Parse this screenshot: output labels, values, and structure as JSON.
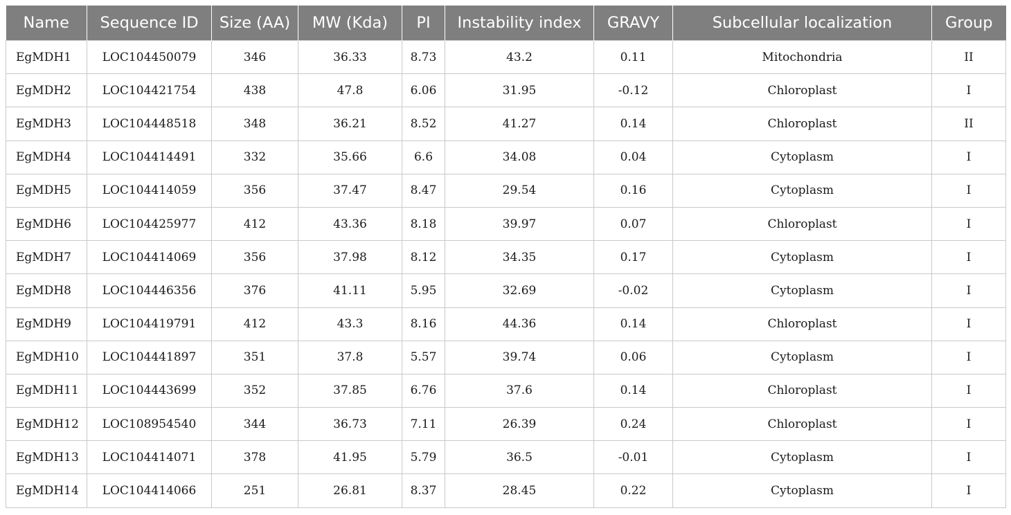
{
  "table": {
    "headers": [
      "Name",
      "Sequence ID",
      "Size (AA)",
      "MW (Kda)",
      "PI",
      "Instability index",
      "GRAVY",
      "Subcellular localization",
      "Group"
    ],
    "rows": [
      [
        "EgMDH1",
        "LOC104450079",
        "346",
        "36.33",
        "8.73",
        "43.2",
        "0.11",
        "Mitochondria",
        "II"
      ],
      [
        "EgMDH2",
        "LOC104421754",
        "438",
        "47.8",
        "6.06",
        "31.95",
        "-0.12",
        "Chloroplast",
        "I"
      ],
      [
        "EgMDH3",
        "LOC104448518",
        "348",
        "36.21",
        "8.52",
        "41.27",
        "0.14",
        "Chloroplast",
        "II"
      ],
      [
        "EgMDH4",
        "LOC104414491",
        "332",
        "35.66",
        "6.6",
        "34.08",
        "0.04",
        "Cytoplasm",
        "I"
      ],
      [
        "EgMDH5",
        "LOC104414059",
        "356",
        "37.47",
        "8.47",
        "29.54",
        "0.16",
        "Cytoplasm",
        "I"
      ],
      [
        "EgMDH6",
        "LOC104425977",
        "412",
        "43.36",
        "8.18",
        "39.97",
        "0.07",
        "Chloroplast",
        "I"
      ],
      [
        "EgMDH7",
        "LOC104414069",
        "356",
        "37.98",
        "8.12",
        "34.35",
        "0.17",
        "Cytoplasm",
        "I"
      ],
      [
        "EgMDH8",
        "LOC104446356",
        "376",
        "41.11",
        "5.95",
        "32.69",
        "-0.02",
        "Cytoplasm",
        "I"
      ],
      [
        "EgMDH9",
        "LOC104419791",
        "412",
        "43.3",
        "8.16",
        "44.36",
        "0.14",
        "Chloroplast",
        "I"
      ],
      [
        "EgMDH10",
        "LOC104441897",
        "351",
        "37.8",
        "5.57",
        "39.74",
        "0.06",
        "Cytoplasm",
        "I"
      ],
      [
        "EgMDH11",
        "LOC104443699",
        "352",
        "37.85",
        "6.76",
        "37.6",
        "0.14",
        "Chloroplast",
        "I"
      ],
      [
        "EgMDH12",
        "LOC108954540",
        "344",
        "36.73",
        "7.11",
        "26.39",
        "0.24",
        "Chloroplast",
        "I"
      ],
      [
        "EgMDH13",
        "LOC104414071",
        "378",
        "41.95",
        "5.79",
        "36.5",
        "-0.01",
        "Cytoplasm",
        "I"
      ],
      [
        "EgMDH14",
        "LOC104414066",
        "251",
        "26.81",
        "8.37",
        "28.45",
        "0.22",
        "Cytoplasm",
        "I"
      ]
    ]
  },
  "colors": {
    "header_background": "#7f7f7f",
    "header_text": "#ffffff",
    "grid_line": "#c9c9c9"
  }
}
